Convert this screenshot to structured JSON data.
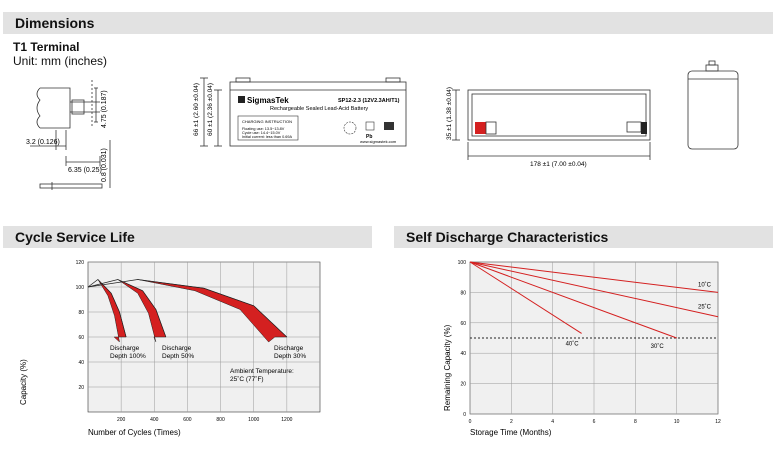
{
  "sections": {
    "dimensions": "Dimensions",
    "cycle_life": "Cycle Service Life",
    "self_discharge": "Self Discharge Characteristics"
  },
  "terminal": {
    "title": "T1 Terminal",
    "unit": "Unit: mm (inches)",
    "dim_height": "4.75 (0.187)",
    "dim_offset": "3.2 (0.126)",
    "dim_width": "6.35 (0.25)",
    "dim_thickness": "0.8 (0.031)"
  },
  "battery": {
    "brand": "SigmasTek",
    "model": "SP12-2.3 (12V2.3AH/T1)",
    "subtitle": "Rechargeable Sealed Lead-Acid Battery",
    "charging_title": "CHARGING INSTRUCTION",
    "charging_line1": "Floating use: 13.5~13.8V",
    "charging_line2": "Cycle use: 14.4~15.0V",
    "charging_line3": "Initial current: less than 0.69A",
    "website": "www.sigmastek.com",
    "dim_total_height": "66 ±1 (2.60 ±0.04)",
    "dim_container_height": "60 ±1 (2.36 ±0.04)",
    "dim_width": "35 ±1 (1.38 ±0.04)",
    "dim_length": "178 ±1 (7.00 ±0.04)",
    "icon_pb": "Pb"
  },
  "chart_data": [
    {
      "type": "area",
      "title": "",
      "xlabel": "Number of Cycles (Times)",
      "ylabel": "Capacity (%)",
      "xlim": [
        0,
        1400
      ],
      "ylim": [
        0,
        120
      ],
      "x_ticks": [
        "200",
        "400",
        "600",
        "800",
        "1000",
        "1200"
      ],
      "y_ticks": [
        "20",
        "40",
        "60",
        "80",
        "100",
        "120"
      ],
      "grid": true,
      "series": [
        {
          "name": "Discharge Depth 100%",
          "x": [
            0,
            60,
            140,
            190,
            230
          ],
          "y": [
            100,
            106,
            95,
            80,
            60
          ]
        },
        {
          "name": "Discharge Depth 50%",
          "x": [
            0,
            180,
            330,
            410,
            470
          ],
          "y": [
            100,
            106,
            97,
            82,
            60
          ]
        },
        {
          "name": "Discharge Depth 30%",
          "x": [
            0,
            300,
            700,
            1000,
            1200
          ],
          "y": [
            100,
            106,
            99,
            85,
            60
          ]
        }
      ],
      "annotations": {
        "label_100_line1": "Discharge",
        "label_100_line2": "Depth 100%",
        "label_50_line1": "Discharge",
        "label_50_line2": "Depth 50%",
        "label_30_line1": "Discharge",
        "label_30_line2": "Depth 30%",
        "ambient_line1": "Ambient Temperature:",
        "ambient_line2": "25˚C (77˚F)"
      }
    },
    {
      "type": "line",
      "title": "",
      "xlabel": "Storage Time (Months)",
      "ylabel": "Remaining Capacity (%)",
      "xlim": [
        0,
        12
      ],
      "ylim": [
        0,
        100
      ],
      "x_ticks": [
        "0",
        "2",
        "4",
        "6",
        "8",
        "10",
        "12"
      ],
      "y_ticks": [
        "0",
        "20",
        "40",
        "60",
        "80",
        "100"
      ],
      "grid": true,
      "reference_y": 50,
      "series": [
        {
          "name": "10˚C",
          "x": [
            0,
            12
          ],
          "y": [
            100,
            80
          ]
        },
        {
          "name": "25˚C",
          "x": [
            0,
            12
          ],
          "y": [
            100,
            64
          ]
        },
        {
          "name": "30˚C",
          "x": [
            0,
            10
          ],
          "y": [
            100,
            50
          ]
        },
        {
          "name": "40˚C",
          "x": [
            0,
            5.4
          ],
          "y": [
            100,
            53
          ]
        }
      ]
    }
  ],
  "colors": {
    "header_bg": "#e2e2e2",
    "curve_red": "#d42020",
    "plot_bg": "#f0f0f0"
  }
}
